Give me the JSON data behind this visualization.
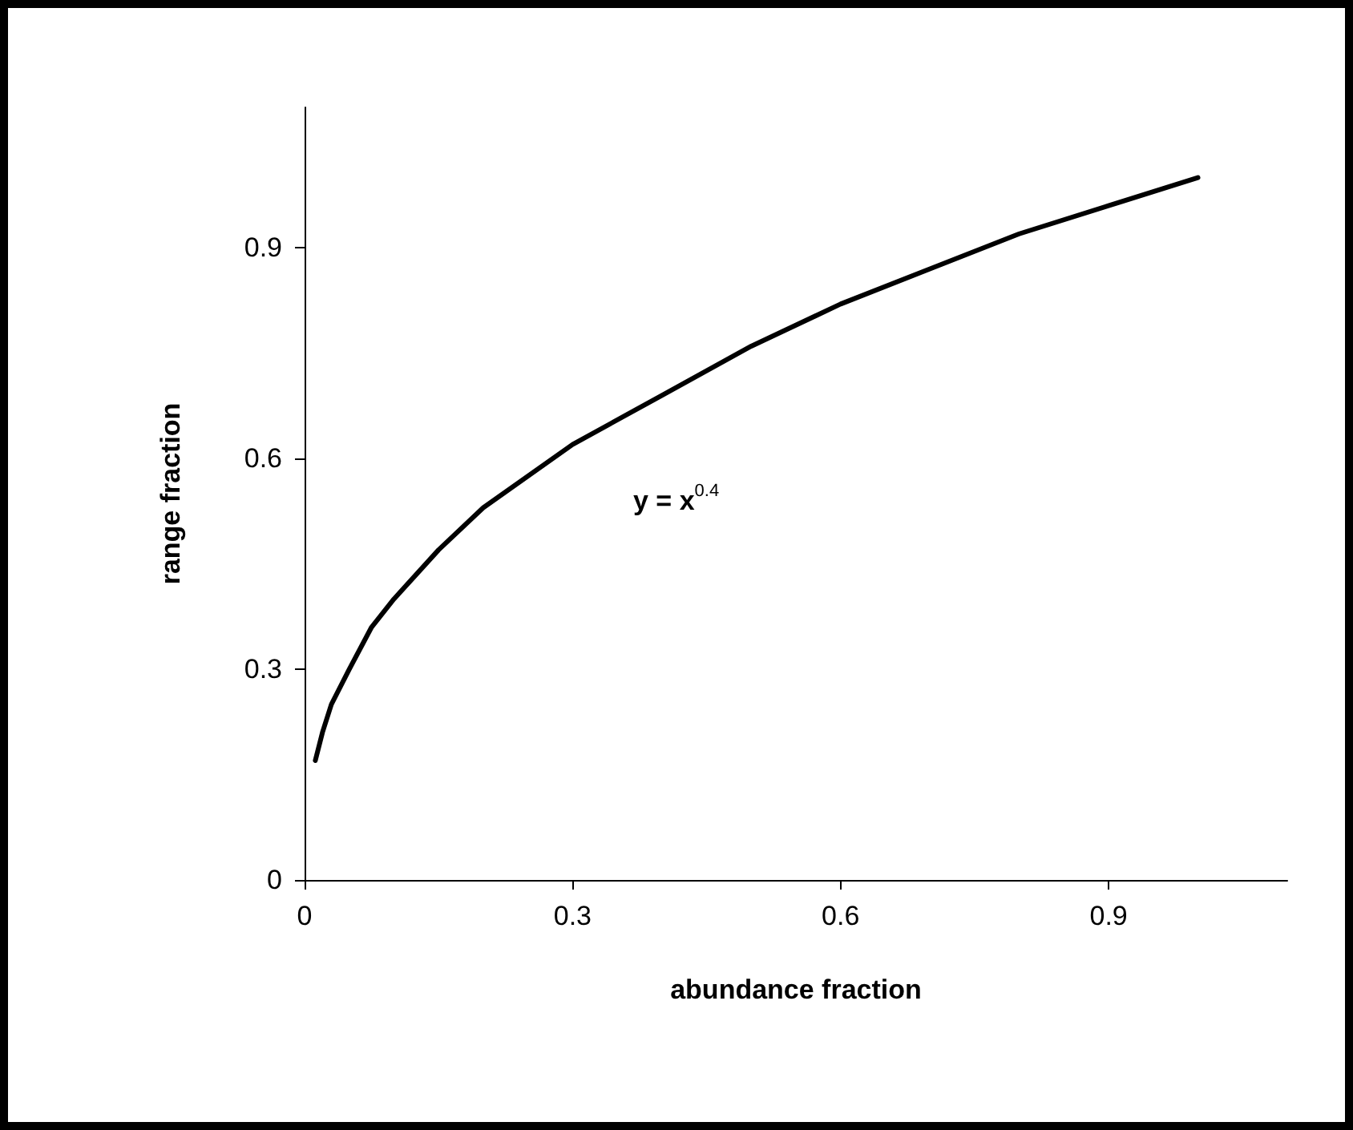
{
  "chart_data": {
    "type": "line",
    "xlabel": "abundance fraction",
    "ylabel": "range fraction",
    "annotations": [
      "y = x$^{0.4}$"
    ],
    "series": [
      {
        "color": "#000000",
        "x": [
          0.012,
          0.02,
          0.03,
          0.05,
          0.075,
          0.1,
          0.15,
          0.2,
          0.3,
          0.4,
          0.5,
          0.6,
          0.7,
          0.8,
          0.9,
          1.0
        ],
        "values": [
          0.17,
          0.21,
          0.25,
          0.3,
          0.36,
          0.4,
          0.47,
          0.53,
          0.62,
          0.69,
          0.76,
          0.82,
          0.87,
          0.92,
          0.96,
          1.0
        ]
      }
    ],
    "xlim": [
      0,
      1.1
    ],
    "xticks": [
      0,
      0.3,
      0.6,
      0.9
    ],
    "ylim": [
      0,
      1.1
    ],
    "yticks": [
      0,
      0.3,
      0.6,
      0.9
    ],
    "grid": false,
    "marker": "none",
    "line_style": "solid"
  }
}
